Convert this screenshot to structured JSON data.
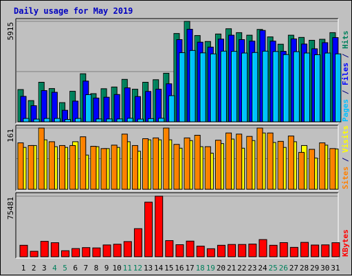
{
  "chart_data": {
    "type": "bar",
    "title": "Daily usage for May 2019",
    "categories": [
      "1",
      "2",
      "3",
      "4",
      "5",
      "6",
      "7",
      "8",
      "9",
      "10",
      "11",
      "12",
      "13",
      "14",
      "15",
      "16",
      "17",
      "18",
      "19",
      "20",
      "21",
      "22",
      "23",
      "24",
      "25",
      "26",
      "27",
      "28",
      "29",
      "30",
      "31"
    ],
    "weekend_days": [
      "4",
      "5",
      "11",
      "12",
      "18",
      "19",
      "25",
      "26"
    ],
    "panels": [
      {
        "id": "top",
        "axis_label": "5915",
        "ymax": 5915,
        "legend": [
          {
            "text": "Pages",
            "color": "#00c0ff"
          },
          {
            "text": " / ",
            "color": "#000080"
          },
          {
            "text": "Files",
            "color": "#0000ff"
          },
          {
            "text": " / ",
            "color": "#000080"
          },
          {
            "text": "Hits",
            "color": "#00805c"
          }
        ],
        "series": [
          {
            "name": "Hits",
            "color": "#00805c",
            "values": [
              1900,
              1250,
              2330,
              1960,
              1130,
              1800,
              2830,
              1660,
              1950,
              2050,
              2500,
              1920,
              2330,
              2480,
              2860,
              5200,
              5915,
              5080,
              4730,
              5170,
              5480,
              5250,
              5100,
              5440,
              5000,
              4570,
              5100,
              4970,
              4800,
              4860,
              5250
            ]
          },
          {
            "name": "Files",
            "color": "#0000ff",
            "values": [
              1500,
              950,
              1840,
              1740,
              680,
              1220,
              2400,
              1400,
              1450,
              1610,
              2000,
              1490,
              1790,
              1920,
              2240,
              4840,
              5450,
              4690,
              4400,
              4870,
              5100,
              4840,
              4750,
              5380,
              4750,
              4150,
              4880,
              4580,
              4300,
              4660,
              4960
            ]
          },
          {
            "name": "Pages",
            "color": "#00c0ff",
            "values": [
              200,
              160,
              200,
              200,
              140,
              200,
              1600,
              170,
              170,
              170,
              210,
              160,
              190,
              210,
              1540,
              4070,
              4200,
              4060,
              4000,
              4160,
              4150,
              4050,
              4080,
              4160,
              4140,
              3960,
              4130,
              4050,
              3950,
              4050,
              4000
            ]
          }
        ]
      },
      {
        "id": "middle",
        "axis_label": "161",
        "ymax": 161,
        "legend": [
          {
            "text": "Sites",
            "color": "#ff8000"
          },
          {
            "text": " / ",
            "color": "#000080"
          },
          {
            "text": "Visits",
            "color": "#ffff00"
          }
        ],
        "series": [
          {
            "name": "Visits",
            "color": "#ffff00",
            "values": [
              110,
              115,
              130,
              112,
              110,
              125,
              90,
              112,
              107,
              110,
              125,
              100,
              130,
              130,
              130,
              108,
              128,
              112,
              95,
              120,
              132,
              108,
              128,
              148,
              123,
              110,
              125,
              115,
              82,
              116,
              106
            ]
          },
          {
            "name": "Sites",
            "color": "#ff8000",
            "values": [
              122,
              115,
              161,
              125,
              115,
              115,
              138,
              113,
              107,
              116,
              145,
              115,
              133,
              135,
              161,
              118,
              135,
              142,
              112,
              129,
              148,
              145,
              139,
              161,
              148,
              126,
              140,
              97,
              105,
              122,
              107
            ]
          }
        ]
      },
      {
        "id": "bottom",
        "axis_label": "75481",
        "ymax": 75481,
        "legend": [
          {
            "text": "KBytes",
            "color": "#ff0000"
          }
        ],
        "series": [
          {
            "name": "KBytes",
            "color": "#ff0000",
            "values": [
              14300,
              6800,
              19200,
              17500,
              7500,
              10200,
              11400,
              11000,
              14700,
              15600,
              18900,
              35000,
              68000,
              75481,
              20100,
              15000,
              19500,
              13200,
              10000,
              14300,
              15300,
              15300,
              15800,
              21400,
              14300,
              17600,
              11700,
              17900,
              14600,
              14800,
              17500
            ]
          }
        ]
      }
    ]
  }
}
